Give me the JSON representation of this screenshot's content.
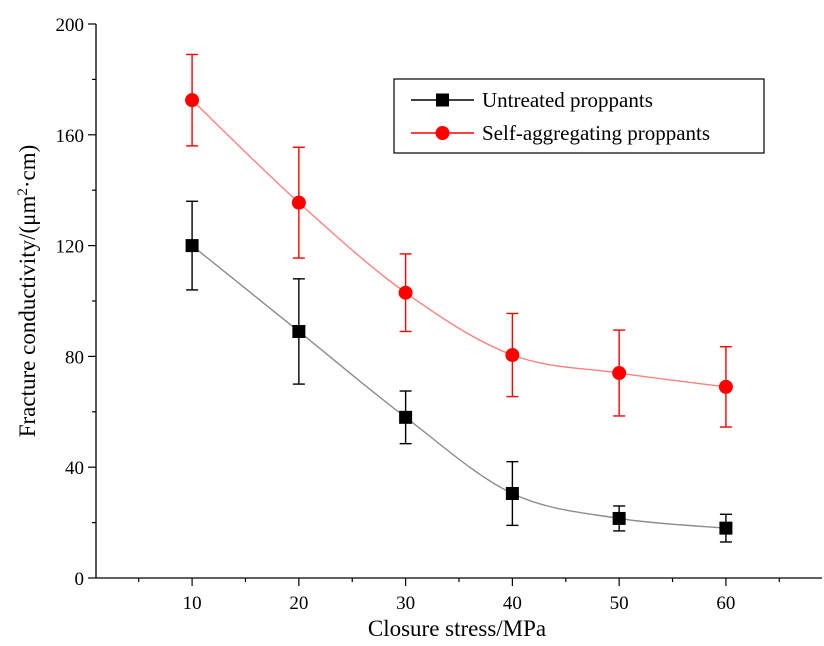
{
  "chart_data": {
    "type": "line",
    "xlabel": "Closure stress/MPa",
    "ylabel_prefix": "Fracture conductivity/(μm",
    "ylabel_sup": "2",
    "ylabel_suffix": "·cm)",
    "x": [
      10,
      20,
      30,
      40,
      50,
      60
    ],
    "xlim": [
      1,
      69
    ],
    "ylim": [
      0,
      200
    ],
    "xticks": [
      10,
      20,
      30,
      40,
      50,
      60
    ],
    "yticks": [
      0,
      40,
      80,
      120,
      160,
      200
    ],
    "legend_position": "top-right",
    "series": [
      {
        "name": "Untreated proppants",
        "values": [
          120,
          89,
          58,
          30.5,
          21.5,
          18
        ],
        "errors": [
          16,
          19,
          9.5,
          11.5,
          4.5,
          5
        ],
        "color": "#000000",
        "line_color": "#8c8c8c",
        "marker": "square"
      },
      {
        "name": "Self-aggregating proppants",
        "values": [
          172.5,
          135.5,
          103,
          80.5,
          74,
          69
        ],
        "errors": [
          16.5,
          20,
          14,
          15,
          15.5,
          14.5
        ],
        "color": "#ff0000",
        "line_color": "#ff8080",
        "marker": "circle"
      }
    ]
  }
}
